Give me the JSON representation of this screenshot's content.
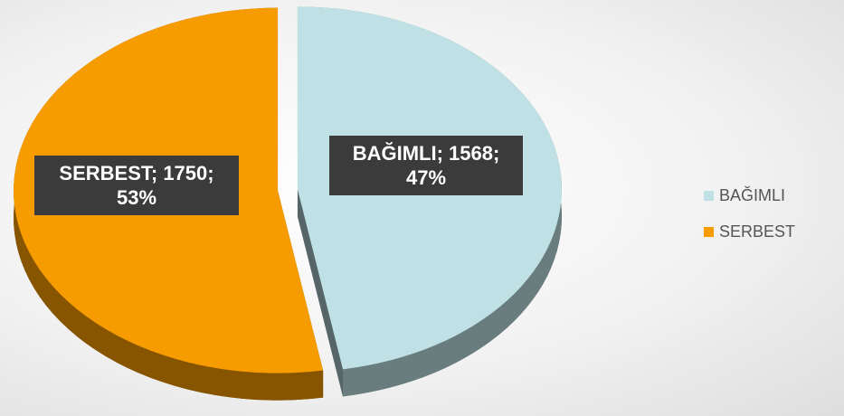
{
  "chart_data": {
    "type": "pie",
    "categories": [
      "BAĞIMLI",
      "SERBEST"
    ],
    "values": [
      1568,
      1750
    ],
    "value_labels": [
      "BAĞIMLI; 1568; 47%",
      "SERBEST; 1750; 53%"
    ],
    "colors": [
      "#bfe1e5",
      "#f69b00"
    ],
    "legend": "right"
  }
}
